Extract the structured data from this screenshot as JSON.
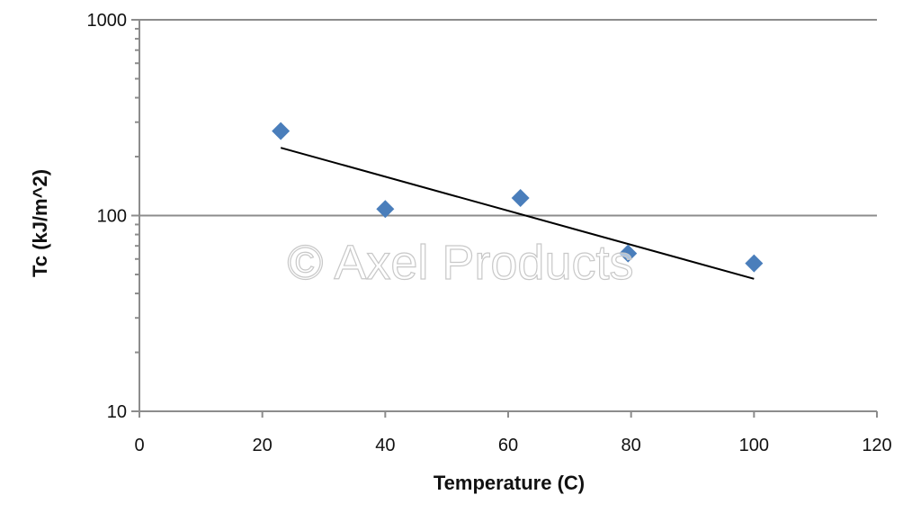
{
  "chart_data": {
    "type": "scatter",
    "xlabel": "Temperature (C)",
    "ylabel": "Tc (kJ/m^2)",
    "xlim": [
      0,
      120
    ],
    "ylim": [
      10,
      1000
    ],
    "y_scale": "log",
    "x_ticks": [
      "0",
      "20",
      "40",
      "60",
      "80",
      "100",
      "120"
    ],
    "y_ticks": [
      "10",
      "100",
      "1000"
    ],
    "grid": "horizontal major lines at 100 and 1000",
    "series": [
      {
        "marker": "diamond",
        "color": "#4a7ebb",
        "x": [
          23,
          40,
          62,
          79.5,
          100
        ],
        "y": [
          270,
          108,
          123,
          64,
          57
        ]
      }
    ],
    "trendline": {
      "color": "#000000",
      "x": [
        23,
        100
      ],
      "y": [
        222,
        47.5
      ]
    }
  },
  "watermark": {
    "text": "© Axel Products"
  }
}
